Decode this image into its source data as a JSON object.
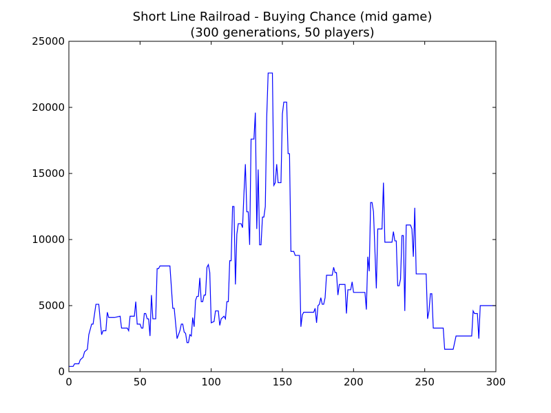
{
  "chart_data": {
    "type": "line",
    "title": "Short Line Railroad - Buying Chance (mid game)",
    "subtitle": "(300 generations, 50 players)",
    "xlabel": "",
    "ylabel": "",
    "xlim": [
      0,
      300
    ],
    "ylim": [
      0,
      25000
    ],
    "xticks": [
      "0",
      "50",
      "100",
      "150",
      "200",
      "250",
      "300"
    ],
    "yticks": [
      "0",
      "5000",
      "10000",
      "15000",
      "20000",
      "25000"
    ],
    "grid": false,
    "line_color": "#0000ff",
    "series": [
      {
        "points": [
          [
            0,
            400
          ],
          [
            3,
            400
          ],
          [
            4,
            600
          ],
          [
            7,
            600
          ],
          [
            8,
            900
          ],
          [
            10,
            1100
          ],
          [
            11,
            1500
          ],
          [
            13,
            1700
          ],
          [
            14,
            2800
          ],
          [
            16,
            3600
          ],
          [
            17,
            3600
          ],
          [
            19,
            5100
          ],
          [
            21,
            5100
          ],
          [
            23,
            2800
          ],
          [
            24,
            3100
          ],
          [
            26,
            3100
          ],
          [
            27,
            4500
          ],
          [
            28,
            4100
          ],
          [
            32,
            4100
          ],
          [
            36,
            4200
          ],
          [
            37,
            3300
          ],
          [
            41,
            3300
          ],
          [
            42,
            3100
          ],
          [
            43,
            4200
          ],
          [
            46,
            4200
          ],
          [
            47,
            5300
          ],
          [
            48,
            3600
          ],
          [
            50,
            3600
          ],
          [
            51,
            3300
          ],
          [
            52,
            3300
          ],
          [
            53,
            4400
          ],
          [
            54,
            4400
          ],
          [
            55,
            4000
          ],
          [
            56,
            4000
          ],
          [
            57,
            2700
          ],
          [
            58,
            5800
          ],
          [
            59,
            4000
          ],
          [
            61,
            4000
          ],
          [
            62,
            7800
          ],
          [
            63,
            7800
          ],
          [
            64,
            8000
          ],
          [
            71,
            8000
          ],
          [
            73,
            4800
          ],
          [
            74,
            4800
          ],
          [
            76,
            2500
          ],
          [
            77,
            2800
          ],
          [
            78,
            3100
          ],
          [
            79,
            3600
          ],
          [
            80,
            3600
          ],
          [
            81,
            3000
          ],
          [
            82,
            2900
          ],
          [
            83,
            2200
          ],
          [
            84,
            2200
          ],
          [
            85,
            2800
          ],
          [
            86,
            2700
          ],
          [
            87,
            4100
          ],
          [
            88,
            3400
          ],
          [
            89,
            5400
          ],
          [
            90,
            5700
          ],
          [
            91,
            5700
          ],
          [
            92,
            7100
          ],
          [
            93,
            5300
          ],
          [
            94,
            5300
          ],
          [
            95,
            5800
          ],
          [
            96,
            5800
          ],
          [
            97,
            7900
          ],
          [
            98,
            8100
          ],
          [
            99,
            7500
          ],
          [
            100,
            3700
          ],
          [
            102,
            3800
          ],
          [
            103,
            4600
          ],
          [
            105,
            4600
          ],
          [
            106,
            3500
          ],
          [
            107,
            4000
          ],
          [
            108,
            4100
          ],
          [
            109,
            4200
          ],
          [
            110,
            4000
          ],
          [
            111,
            5300
          ],
          [
            112,
            5300
          ],
          [
            113,
            8400
          ],
          [
            114,
            8400
          ],
          [
            115,
            12500
          ],
          [
            116,
            12500
          ],
          [
            117,
            6600
          ],
          [
            118,
            10400
          ],
          [
            119,
            11200
          ],
          [
            121,
            11200
          ],
          [
            122,
            10900
          ],
          [
            123,
            13500
          ],
          [
            124,
            15700
          ],
          [
            125,
            12100
          ],
          [
            126,
            12100
          ],
          [
            127,
            9600
          ],
          [
            128,
            17600
          ],
          [
            130,
            17600
          ],
          [
            131,
            19600
          ],
          [
            132,
            10800
          ],
          [
            133,
            15300
          ],
          [
            134,
            9600
          ],
          [
            135,
            9600
          ],
          [
            136,
            11700
          ],
          [
            137,
            11700
          ],
          [
            138,
            12500
          ],
          [
            139,
            19300
          ],
          [
            140,
            22600
          ],
          [
            143,
            22600
          ],
          [
            144,
            14100
          ],
          [
            145,
            14300
          ],
          [
            146,
            15700
          ],
          [
            147,
            14300
          ],
          [
            149,
            14300
          ],
          [
            150,
            19500
          ],
          [
            151,
            20400
          ],
          [
            153,
            20400
          ],
          [
            154,
            16500
          ],
          [
            155,
            16500
          ],
          [
            156,
            9100
          ],
          [
            158,
            9100
          ],
          [
            159,
            8800
          ],
          [
            162,
            8800
          ],
          [
            163,
            3400
          ],
          [
            164,
            4300
          ],
          [
            165,
            4500
          ],
          [
            172,
            4500
          ],
          [
            173,
            4800
          ],
          [
            174,
            3700
          ],
          [
            175,
            5000
          ],
          [
            176,
            5100
          ],
          [
            177,
            5600
          ],
          [
            178,
            5100
          ],
          [
            179,
            5100
          ],
          [
            180,
            5600
          ],
          [
            181,
            7300
          ],
          [
            185,
            7300
          ],
          [
            186,
            7900
          ],
          [
            187,
            7500
          ],
          [
            188,
            7500
          ],
          [
            189,
            5800
          ],
          [
            190,
            6600
          ],
          [
            194,
            6600
          ],
          [
            195,
            4400
          ],
          [
            196,
            6200
          ],
          [
            198,
            6200
          ],
          [
            199,
            6800
          ],
          [
            200,
            6000
          ],
          [
            208,
            6000
          ],
          [
            209,
            4700
          ],
          [
            210,
            8700
          ],
          [
            211,
            7600
          ],
          [
            212,
            12800
          ],
          [
            213,
            12800
          ],
          [
            214,
            12100
          ],
          [
            216,
            6300
          ],
          [
            217,
            10800
          ],
          [
            220,
            10800
          ],
          [
            221,
            14300
          ],
          [
            222,
            9800
          ],
          [
            227,
            9800
          ],
          [
            228,
            10600
          ],
          [
            229,
            9900
          ],
          [
            230,
            9900
          ],
          [
            231,
            6500
          ],
          [
            232,
            6500
          ],
          [
            233,
            7000
          ],
          [
            234,
            10300
          ],
          [
            235,
            10300
          ],
          [
            236,
            4600
          ],
          [
            237,
            11100
          ],
          [
            240,
            11100
          ],
          [
            241,
            10800
          ],
          [
            242,
            8700
          ],
          [
            243,
            12400
          ],
          [
            244,
            7400
          ],
          [
            251,
            7400
          ],
          [
            252,
            4000
          ],
          [
            253,
            4600
          ],
          [
            254,
            5900
          ],
          [
            255,
            5900
          ],
          [
            256,
            3300
          ],
          [
            263,
            3300
          ],
          [
            264,
            1700
          ],
          [
            270,
            1700
          ],
          [
            272,
            2700
          ],
          [
            283,
            2700
          ],
          [
            284,
            4600
          ],
          [
            285,
            4400
          ],
          [
            287,
            4400
          ],
          [
            288,
            2500
          ],
          [
            289,
            5000
          ],
          [
            300,
            5000
          ]
        ]
      }
    ]
  }
}
